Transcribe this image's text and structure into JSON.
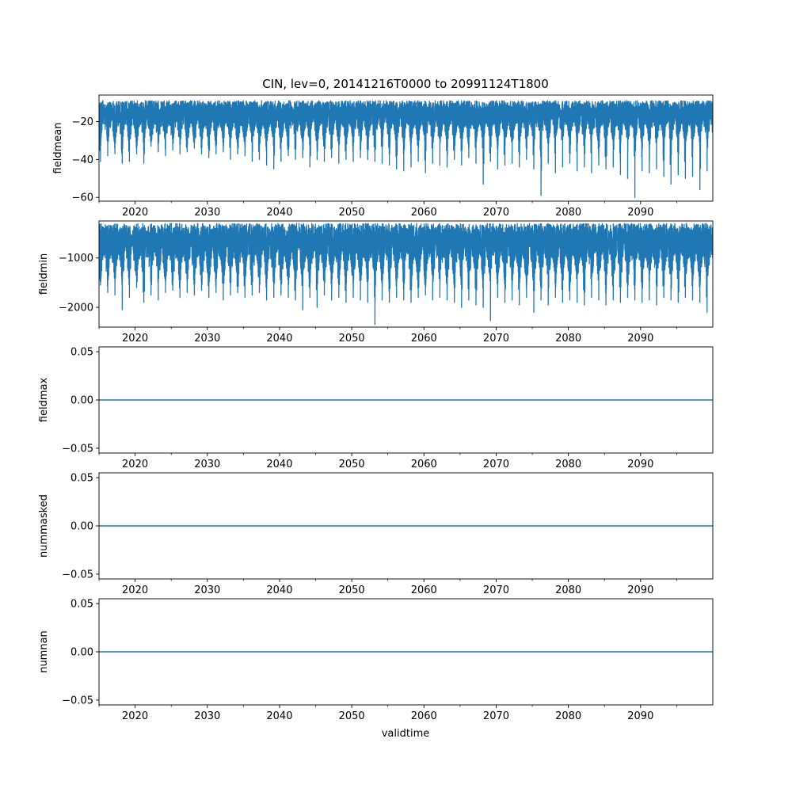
{
  "title": "CIN, lev=0, 20141216T0000 to 20991124T1800",
  "xlabel": "validtime",
  "series_color": "#1f77b4",
  "chart_data": [
    {
      "type": "line",
      "ylabel": "fieldmean",
      "xlim": [
        2015.0,
        2100.0
      ],
      "ylim": [
        -62,
        -6
      ],
      "xticks": [
        "2020",
        "2030",
        "2040",
        "2050",
        "2060",
        "2070",
        "2080",
        "2090"
      ],
      "yticks": [
        -60,
        -40,
        -20
      ],
      "ytick_labels": [
        "−60",
        "−40",
        "−20"
      ],
      "series": [
        {
          "description_of_shape": "seasonal oscillation (~annual), values mostly between about -10 and -30",
          "upper_envelope": -9,
          "typical_lower": -30,
          "annual_minima": [
            [
              2015.2,
              -41
            ],
            [
              2016.2,
              -38
            ],
            [
              2017.2,
              -37
            ],
            [
              2018.2,
              -42
            ],
            [
              2019.2,
              -41
            ],
            [
              2020.2,
              -37
            ],
            [
              2021.2,
              -42
            ],
            [
              2022.2,
              -33
            ],
            [
              2023.2,
              -36
            ],
            [
              2024.2,
              -38
            ],
            [
              2025.2,
              -35
            ],
            [
              2026.2,
              -37
            ],
            [
              2027.2,
              -36
            ],
            [
              2028.2,
              -34
            ],
            [
              2029.2,
              -37
            ],
            [
              2030.2,
              -39
            ],
            [
              2031.2,
              -37
            ],
            [
              2032.2,
              -36
            ],
            [
              2033.2,
              -40
            ],
            [
              2034.2,
              -37
            ],
            [
              2035.2,
              -38
            ],
            [
              2036.2,
              -41
            ],
            [
              2037.2,
              -40
            ],
            [
              2038.2,
              -43
            ],
            [
              2039.2,
              -45
            ],
            [
              2040.2,
              -41
            ],
            [
              2041.2,
              -38
            ],
            [
              2042.2,
              -40
            ],
            [
              2043.2,
              -39
            ],
            [
              2044.2,
              -44
            ],
            [
              2045.2,
              -40
            ],
            [
              2046.2,
              -41
            ],
            [
              2047.2,
              -39
            ],
            [
              2048.2,
              -42
            ],
            [
              2049.2,
              -40
            ],
            [
              2050.2,
              -41
            ],
            [
              2051.2,
              -39
            ],
            [
              2052.2,
              -40
            ],
            [
              2053.2,
              -41
            ],
            [
              2054.2,
              -42
            ],
            [
              2055.2,
              -43
            ],
            [
              2056.2,
              -45
            ],
            [
              2057.2,
              -46
            ],
            [
              2058.2,
              -44
            ],
            [
              2059.2,
              -41
            ],
            [
              2060.2,
              -47
            ],
            [
              2061.2,
              -42
            ],
            [
              2062.2,
              -43
            ],
            [
              2063.2,
              -44
            ],
            [
              2064.2,
              -40
            ],
            [
              2065.2,
              -43
            ],
            [
              2066.2,
              -39
            ],
            [
              2067.2,
              -42
            ],
            [
              2068.2,
              -53
            ],
            [
              2069.2,
              -41
            ],
            [
              2070.2,
              -45
            ],
            [
              2071.2,
              -43
            ],
            [
              2072.2,
              -42
            ],
            [
              2073.2,
              -44
            ],
            [
              2074.2,
              -40
            ],
            [
              2075.2,
              -45
            ],
            [
              2076.2,
              -59
            ],
            [
              2077.2,
              -42
            ],
            [
              2078.2,
              -47
            ],
            [
              2079.2,
              -44
            ],
            [
              2080.2,
              -42
            ],
            [
              2081.2,
              -46
            ],
            [
              2082.2,
              -44
            ],
            [
              2083.2,
              -47
            ],
            [
              2084.2,
              -43
            ],
            [
              2085.2,
              -45
            ],
            [
              2086.2,
              -44
            ],
            [
              2087.2,
              -48
            ],
            [
              2088.2,
              -50
            ],
            [
              2089.2,
              -60
            ],
            [
              2090.2,
              -46
            ],
            [
              2091.2,
              -47
            ],
            [
              2092.2,
              -45
            ],
            [
              2093.2,
              -49
            ],
            [
              2094.2,
              -53
            ],
            [
              2095.2,
              -48
            ],
            [
              2096.2,
              -50
            ],
            [
              2097.2,
              -49
            ],
            [
              2098.2,
              -56
            ],
            [
              2099.2,
              -46
            ]
          ]
        }
      ]
    },
    {
      "type": "line",
      "ylabel": "fieldmin",
      "xlim": [
        2015.0,
        2100.0
      ],
      "ylim": [
        -2400,
        -250
      ],
      "xticks": [
        "2020",
        "2030",
        "2040",
        "2050",
        "2060",
        "2070",
        "2080",
        "2090"
      ],
      "yticks": [
        -2000,
        -1000
      ],
      "ytick_labels": [
        "−2000",
        "−1000"
      ],
      "series": [
        {
          "description_of_shape": "seasonal oscillation (~annual), values mostly between about -300 and -1400",
          "upper_envelope": -300,
          "typical_lower": -1400,
          "annual_minima": [
            [
              2015.2,
              -1550
            ],
            [
              2016.2,
              -1700
            ],
            [
              2017.2,
              -1750
            ],
            [
              2018.2,
              -2050
            ],
            [
              2019.2,
              -1800
            ],
            [
              2020.2,
              -1600
            ],
            [
              2021.2,
              -1900
            ],
            [
              2022.2,
              -1750
            ],
            [
              2023.2,
              -1850
            ],
            [
              2024.2,
              -1700
            ],
            [
              2025.2,
              -1650
            ],
            [
              2026.2,
              -1800
            ],
            [
              2027.2,
              -1700
            ],
            [
              2028.2,
              -1750
            ],
            [
              2029.2,
              -1650
            ],
            [
              2030.2,
              -1800
            ],
            [
              2031.2,
              -1700
            ],
            [
              2032.2,
              -1850
            ],
            [
              2033.2,
              -1750
            ],
            [
              2034.2,
              -1700
            ],
            [
              2035.2,
              -1800
            ],
            [
              2036.2,
              -1750
            ],
            [
              2037.2,
              -1700
            ],
            [
              2038.2,
              -1850
            ],
            [
              2039.2,
              -1800
            ],
            [
              2040.2,
              -1750
            ],
            [
              2041.2,
              -1800
            ],
            [
              2042.2,
              -1850
            ],
            [
              2043.2,
              -2050
            ],
            [
              2044.2,
              -1800
            ],
            [
              2045.2,
              -2000
            ],
            [
              2046.2,
              -1750
            ],
            [
              2047.2,
              -1850
            ],
            [
              2048.2,
              -1800
            ],
            [
              2049.2,
              -1900
            ],
            [
              2050.2,
              -1800
            ],
            [
              2051.2,
              -1850
            ],
            [
              2052.2,
              -1900
            ],
            [
              2053.2,
              -2350
            ],
            [
              2054.2,
              -1850
            ],
            [
              2055.2,
              -1900
            ],
            [
              2056.2,
              -1800
            ],
            [
              2057.2,
              -1850
            ],
            [
              2058.2,
              -1900
            ],
            [
              2059.2,
              -1800
            ],
            [
              2060.2,
              -1750
            ],
            [
              2061.2,
              -1850
            ],
            [
              2062.2,
              -1800
            ],
            [
              2063.2,
              -1850
            ],
            [
              2064.2,
              -1900
            ],
            [
              2065.2,
              -2000
            ],
            [
              2066.2,
              -1850
            ],
            [
              2067.2,
              -1950
            ],
            [
              2068.2,
              -2000
            ],
            [
              2069.2,
              -2270
            ],
            [
              2070.2,
              -1800
            ],
            [
              2071.2,
              -1900
            ],
            [
              2072.2,
              -1850
            ],
            [
              2073.2,
              -1950
            ],
            [
              2074.2,
              -1800
            ],
            [
              2075.2,
              -2100
            ],
            [
              2076.2,
              -1850
            ],
            [
              2077.2,
              -1950
            ],
            [
              2078.2,
              -1800
            ],
            [
              2079.2,
              -1900
            ],
            [
              2080.2,
              -1850
            ],
            [
              2081.2,
              -1900
            ],
            [
              2082.2,
              -1950
            ],
            [
              2083.2,
              -1800
            ],
            [
              2084.2,
              -1850
            ],
            [
              2085.2,
              -1950
            ],
            [
              2086.2,
              -1850
            ],
            [
              2087.2,
              -1900
            ],
            [
              2088.2,
              -1800
            ],
            [
              2089.2,
              -1850
            ],
            [
              2090.2,
              -1900
            ],
            [
              2091.2,
              -1850
            ],
            [
              2092.2,
              -1950
            ],
            [
              2093.2,
              -1800
            ],
            [
              2094.2,
              -1850
            ],
            [
              2095.2,
              -1900
            ],
            [
              2096.2,
              -1800
            ],
            [
              2097.2,
              -1850
            ],
            [
              2098.2,
              -1900
            ],
            [
              2099.2,
              -2100
            ]
          ]
        }
      ]
    },
    {
      "type": "line",
      "ylabel": "fieldmax",
      "xlim": [
        2015.0,
        2100.0
      ],
      "ylim": [
        -0.055,
        0.055
      ],
      "xticks": [
        "2020",
        "2030",
        "2040",
        "2050",
        "2060",
        "2070",
        "2080",
        "2090"
      ],
      "yticks": [
        -0.05,
        0.0,
        0.05
      ],
      "ytick_labels": [
        "−0.05",
        "0.00",
        "0.05"
      ],
      "series": [
        {
          "constant_value": 0.0
        }
      ]
    },
    {
      "type": "line",
      "ylabel": "nummasked",
      "xlim": [
        2015.0,
        2100.0
      ],
      "ylim": [
        -0.055,
        0.055
      ],
      "xticks": [
        "2020",
        "2030",
        "2040",
        "2050",
        "2060",
        "2070",
        "2080",
        "2090"
      ],
      "yticks": [
        -0.05,
        0.0,
        0.05
      ],
      "ytick_labels": [
        "−0.05",
        "0.00",
        "0.05"
      ],
      "series": [
        {
          "constant_value": 0.0
        }
      ]
    },
    {
      "type": "line",
      "ylabel": "numnan",
      "xlim": [
        2015.0,
        2100.0
      ],
      "ylim": [
        -0.055,
        0.055
      ],
      "xticks": [
        "2020",
        "2030",
        "2040",
        "2050",
        "2060",
        "2070",
        "2080",
        "2090"
      ],
      "yticks": [
        -0.05,
        0.0,
        0.05
      ],
      "ytick_labels": [
        "−0.05",
        "0.00",
        "0.05"
      ],
      "series": [
        {
          "constant_value": 0.0
        }
      ]
    }
  ]
}
